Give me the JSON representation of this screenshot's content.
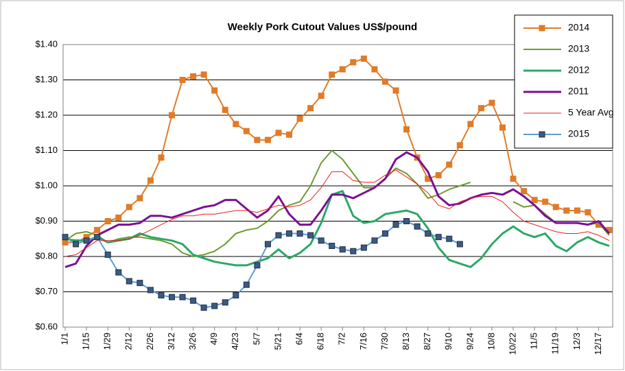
{
  "chart_data": {
    "type": "line",
    "title": "Weekly Pork Cutout Values US$/pound",
    "categories": [
      "1/1",
      null,
      "1/15",
      null,
      "1/29",
      null,
      "2/12",
      null,
      "2/26",
      null,
      "3/12",
      null,
      "3/26",
      null,
      "4/9",
      null,
      "4/23",
      null,
      "5/7",
      null,
      "5/21",
      null,
      "6/4",
      null,
      "6/18",
      null,
      "7/2",
      null,
      "7/16",
      null,
      "7/30",
      null,
      "8/13",
      null,
      "8/27",
      null,
      "9/10",
      null,
      "9/24",
      null,
      "10/8",
      null,
      "10/22",
      null,
      "11/5",
      null,
      "11/19",
      null,
      "12/3",
      null,
      "12/17",
      null
    ],
    "ylim": [
      0.6,
      1.4
    ],
    "yticks": [
      {
        "value": 0.6,
        "label": "$0.60"
      },
      {
        "value": 0.7,
        "label": "$0.70"
      },
      {
        "value": 0.8,
        "label": "$0.80"
      },
      {
        "value": 0.9,
        "label": "$0.90"
      },
      {
        "value": 1.0,
        "label": "$1.00"
      },
      {
        "value": 1.1,
        "label": "$1.10"
      },
      {
        "value": 1.2,
        "label": "$1.20"
      },
      {
        "value": 1.3,
        "label": "$1.30"
      },
      {
        "value": 1.4,
        "label": "$1.40"
      }
    ],
    "grid": true,
    "legend": "top-right",
    "series": [
      {
        "name": "2014",
        "color": "#e07b27",
        "line_width": 2,
        "marker": "square",
        "values": [
          0.84,
          0.84,
          0.855,
          0.875,
          0.9,
          0.91,
          0.94,
          0.965,
          1.015,
          1.08,
          1.2,
          1.3,
          1.31,
          1.315,
          1.27,
          1.215,
          1.175,
          1.155,
          1.13,
          1.13,
          1.15,
          1.145,
          1.19,
          1.22,
          1.255,
          1.315,
          1.33,
          1.35,
          1.36,
          1.33,
          1.295,
          1.27,
          1.16,
          1.08,
          1.02,
          1.03,
          1.06,
          1.115,
          1.175,
          1.22,
          1.235,
          1.165,
          1.02,
          0.985,
          0.96,
          0.955,
          0.94,
          0.93,
          0.93,
          0.925,
          0.89,
          0.875
        ]
      },
      {
        "name": "2013",
        "color": "#6e9a2f",
        "line_width": 2,
        "values": [
          0.845,
          0.865,
          0.87,
          0.86,
          0.84,
          0.85,
          0.855,
          0.855,
          0.85,
          0.845,
          0.835,
          0.81,
          0.8,
          0.805,
          0.815,
          0.835,
          0.865,
          0.875,
          0.88,
          0.9,
          0.93,
          0.945,
          0.955,
          1.0,
          1.065,
          1.1,
          1.075,
          1.035,
          0.995,
          0.995,
          1.02,
          1.05,
          1.035,
          1.005,
          0.965,
          0.975,
          0.99,
          1.0,
          1.01,
          null,
          null,
          null,
          0.955,
          0.94,
          0.945,
          0.92,
          0.895,
          0.895,
          0.895,
          0.89,
          0.895,
          0.86
        ]
      },
      {
        "name": "2012",
        "color": "#2aa866",
        "line_width": 3,
        "values": [
          0.85,
          0.845,
          0.845,
          0.855,
          0.84,
          0.845,
          0.85,
          0.865,
          0.855,
          0.85,
          0.845,
          0.835,
          0.805,
          0.795,
          0.785,
          0.78,
          0.775,
          0.775,
          0.785,
          0.795,
          0.82,
          0.795,
          0.81,
          0.835,
          0.895,
          0.975,
          0.985,
          0.915,
          0.895,
          0.9,
          0.92,
          0.925,
          0.93,
          0.92,
          0.88,
          0.825,
          0.79,
          0.78,
          0.77,
          0.795,
          0.835,
          0.865,
          0.885,
          0.865,
          0.855,
          0.865,
          0.83,
          0.815,
          0.84,
          0.855,
          0.84,
          0.83
        ]
      },
      {
        "name": "2011",
        "color": "#7b0f94",
        "line_width": 3,
        "values": [
          0.77,
          0.78,
          0.83,
          0.86,
          0.875,
          0.89,
          0.89,
          0.895,
          0.915,
          0.915,
          0.91,
          0.92,
          0.93,
          0.94,
          0.945,
          0.96,
          0.96,
          0.935,
          0.91,
          0.93,
          0.97,
          0.92,
          0.89,
          0.89,
          0.93,
          0.975,
          0.975,
          0.965,
          0.98,
          0.995,
          1.02,
          1.075,
          1.095,
          1.08,
          1.04,
          0.97,
          0.945,
          0.95,
          0.965,
          0.975,
          0.98,
          0.975,
          0.99,
          0.97,
          0.945,
          0.915,
          0.895,
          0.895,
          0.895,
          0.89,
          0.9,
          0.865
        ]
      },
      {
        "name": "5 Year Avg",
        "color": "#ee1c1c",
        "line_width": 1,
        "values": [
          0.8,
          0.805,
          0.825,
          0.845,
          0.845,
          0.845,
          0.85,
          0.86,
          0.875,
          0.89,
          0.905,
          0.915,
          0.915,
          0.92,
          0.92,
          0.925,
          0.93,
          0.93,
          0.925,
          0.935,
          0.945,
          0.94,
          0.945,
          0.96,
          0.995,
          1.04,
          1.04,
          1.015,
          1.01,
          1.01,
          1.03,
          1.045,
          1.025,
          1.005,
          0.98,
          0.945,
          0.935,
          0.955,
          0.965,
          0.97,
          0.97,
          0.955,
          0.925,
          0.9,
          0.89,
          0.88,
          0.87,
          0.865,
          0.865,
          0.87,
          0.86,
          0.845
        ]
      },
      {
        "name": "2015",
        "color": "#5b9bd5",
        "line_width": 2,
        "marker": "square",
        "marker_color": "#3d5a80",
        "values": [
          0.855,
          0.835,
          0.845,
          0.855,
          0.805,
          0.755,
          0.73,
          0.725,
          0.705,
          0.69,
          0.685,
          0.685,
          0.675,
          0.655,
          0.66,
          0.67,
          0.69,
          0.72,
          0.775,
          0.835,
          0.86,
          0.865,
          0.865,
          0.86,
          0.845,
          0.83,
          0.82,
          0.815,
          0.825,
          0.845,
          0.865,
          0.89,
          0.9,
          0.885,
          0.865,
          0.855,
          0.85,
          0.835,
          null,
          null,
          null,
          null,
          null,
          null,
          null,
          null,
          null,
          null,
          null,
          null,
          null,
          null
        ]
      }
    ]
  }
}
